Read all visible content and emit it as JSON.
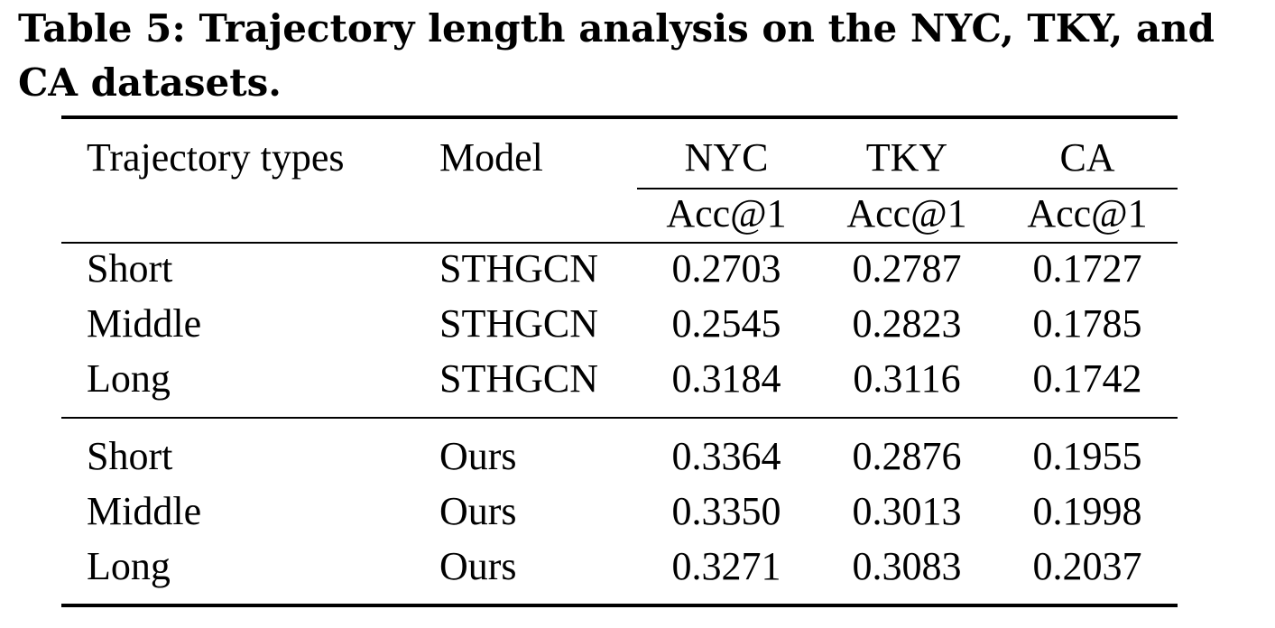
{
  "caption": "Table 5: Trajectory length analysis on the NYC, TKY, and CA datasets.",
  "table": {
    "header": {
      "col_type": "Trajectory types",
      "col_model": "Model",
      "datasets": [
        "NYC",
        "TKY",
        "CA"
      ],
      "metric": "Acc@1"
    },
    "group1": [
      {
        "type": "Short",
        "model": "STHGCN",
        "nyc": "0.2703",
        "tky": "0.2787",
        "ca": "0.1727"
      },
      {
        "type": "Middle",
        "model": "STHGCN",
        "nyc": "0.2545",
        "tky": "0.2823",
        "ca": "0.1785"
      },
      {
        "type": "Long",
        "model": "STHGCN",
        "nyc": "0.3184",
        "tky": "0.3116",
        "ca": "0.1742"
      }
    ],
    "group2": [
      {
        "type": "Short",
        "model": "Ours",
        "nyc": "0.3364",
        "tky": "0.2876",
        "ca": "0.1955"
      },
      {
        "type": "Middle",
        "model": "Ours",
        "nyc": "0.3350",
        "tky": "0.3013",
        "ca": "0.1998"
      },
      {
        "type": "Long",
        "model": "Ours",
        "nyc": "0.3271",
        "tky": "0.3083",
        "ca": "0.2037"
      }
    ]
  }
}
